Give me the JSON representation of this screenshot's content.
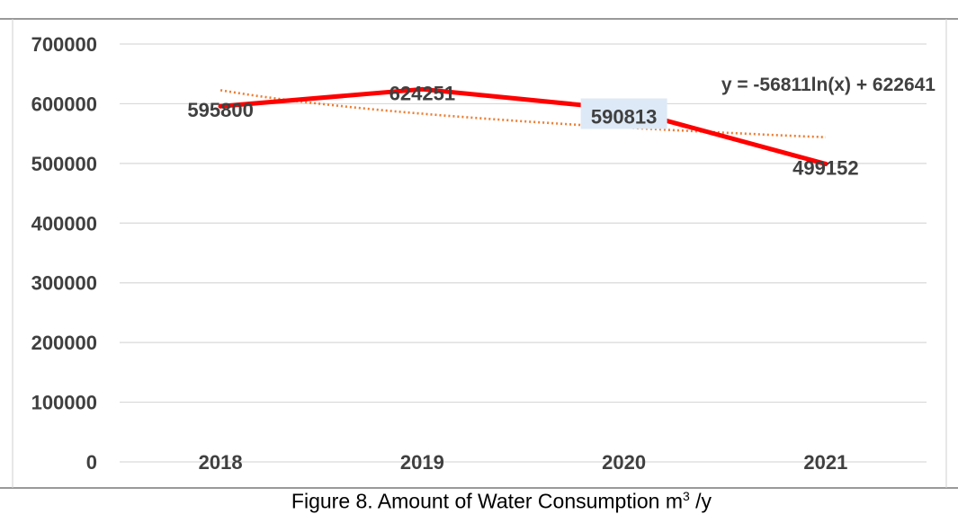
{
  "caption": {
    "text": "Figure 8. Amount of Water Consumption m",
    "superscript": "3",
    "suffix": " /y"
  },
  "chart_data": {
    "type": "line",
    "categories": [
      "2018",
      "2019",
      "2020",
      "2021"
    ],
    "series": [
      {
        "values": [
          595800,
          624251,
          590813,
          499152
        ],
        "color": "#ff0000"
      }
    ],
    "data_labels": [
      "595800",
      "624251",
      "590813",
      "499152"
    ],
    "ylim": [
      0,
      700000
    ],
    "yticks": [
      "0",
      "100000",
      "200000",
      "300000",
      "400000",
      "500000",
      "600000",
      "700000"
    ],
    "grid": true,
    "trendline": {
      "type": "logarithmic",
      "equation": "y = -56811ln(x) + 622641",
      "a": -56811,
      "b": 622641,
      "color": "#ed7d31",
      "style": "dotted"
    },
    "highlighted_label": {
      "index": 2,
      "background": "#dde9f6"
    }
  }
}
